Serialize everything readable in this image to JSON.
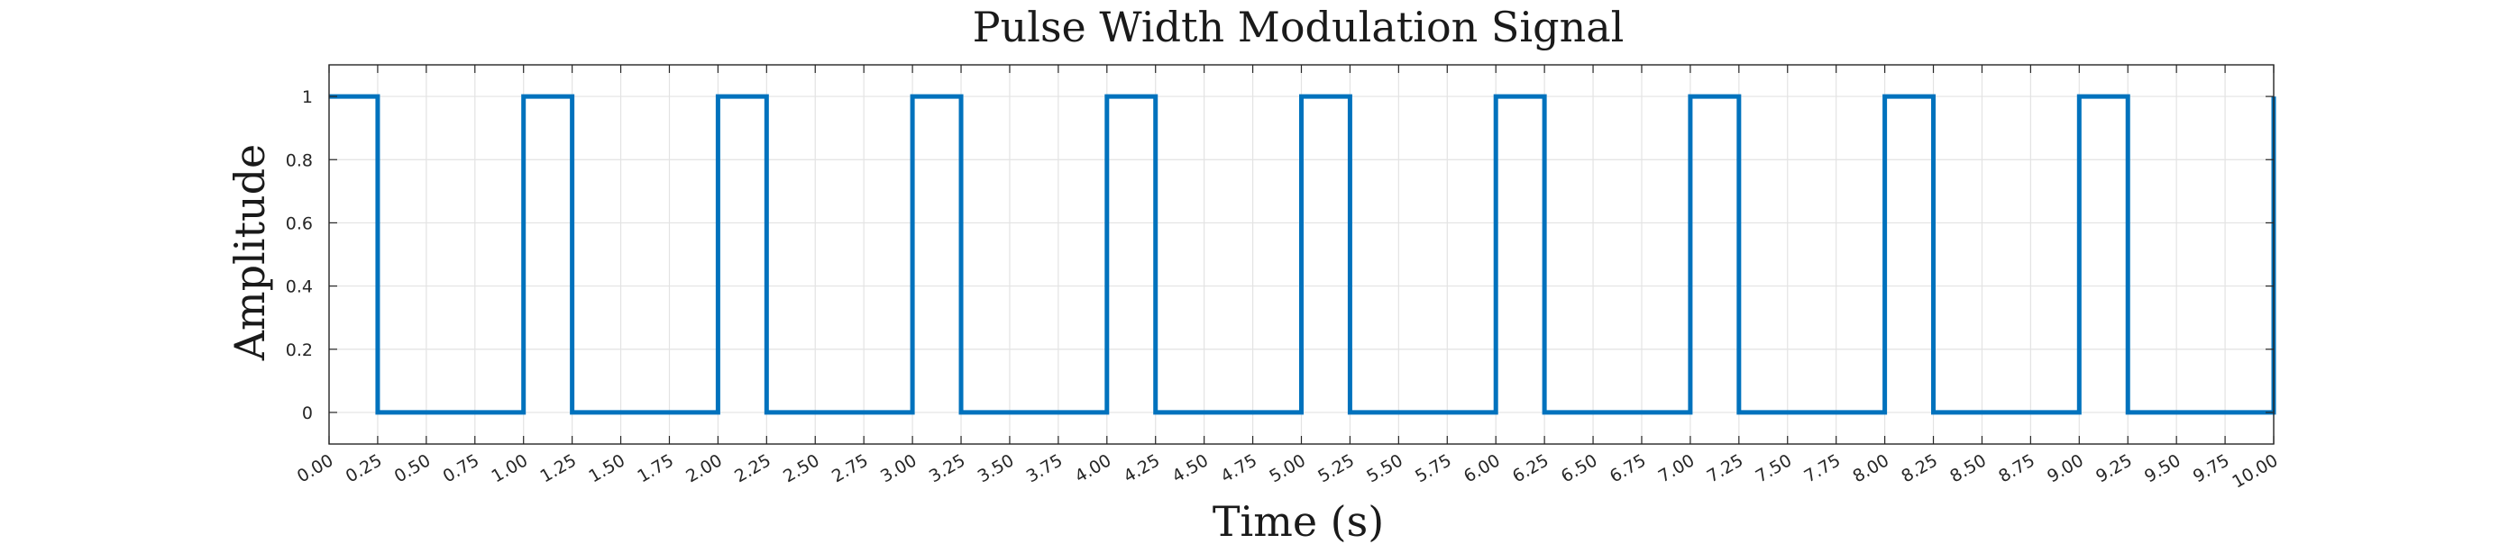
{
  "chart_data": {
    "type": "line",
    "title": "Pulse Width Modulation Signal",
    "xlabel": "Time (s)",
    "ylabel": "Amplitude",
    "xlim": [
      0,
      10
    ],
    "ylim": [
      -0.1,
      1.1
    ],
    "grid": true,
    "x_ticks": [
      "0.00",
      "0.25",
      "0.50",
      "0.75",
      "1.00",
      "1.25",
      "1.50",
      "1.75",
      "2.00",
      "2.25",
      "2.50",
      "2.75",
      "3.00",
      "3.25",
      "3.50",
      "3.75",
      "4.00",
      "4.25",
      "4.50",
      "4.75",
      "5.00",
      "5.25",
      "5.50",
      "5.75",
      "6.00",
      "6.25",
      "6.50",
      "6.75",
      "7.00",
      "7.25",
      "7.50",
      "7.75",
      "8.00",
      "8.25",
      "8.50",
      "8.75",
      "9.00",
      "9.25",
      "9.50",
      "9.75",
      "10.00"
    ],
    "y_ticks": [
      "0",
      "0.2",
      "0.4",
      "0.6",
      "0.8",
      "1"
    ],
    "line_color": "#0072BD",
    "series": [
      {
        "x": [
          0,
          0.25,
          0.25,
          1.0,
          1.0,
          1.25,
          1.25,
          2.0,
          2.0,
          2.25,
          2.25,
          3.0,
          3.0,
          3.25,
          3.25,
          4.0,
          4.0,
          4.25,
          4.25,
          5.0,
          5.0,
          5.25,
          5.25,
          6.0,
          6.0,
          6.25,
          6.25,
          7.0,
          7.0,
          7.25,
          7.25,
          8.0,
          8.0,
          8.25,
          8.25,
          9.0,
          9.0,
          9.25,
          9.25,
          10.0,
          10.0
        ],
        "y": [
          1,
          1,
          0,
          0,
          1,
          1,
          0,
          0,
          1,
          1,
          0,
          0,
          1,
          1,
          0,
          0,
          1,
          1,
          0,
          0,
          1,
          1,
          0,
          0,
          1,
          1,
          0,
          0,
          1,
          1,
          0,
          0,
          1,
          1,
          0,
          0,
          1,
          1,
          0,
          0,
          1
        ]
      }
    ]
  }
}
